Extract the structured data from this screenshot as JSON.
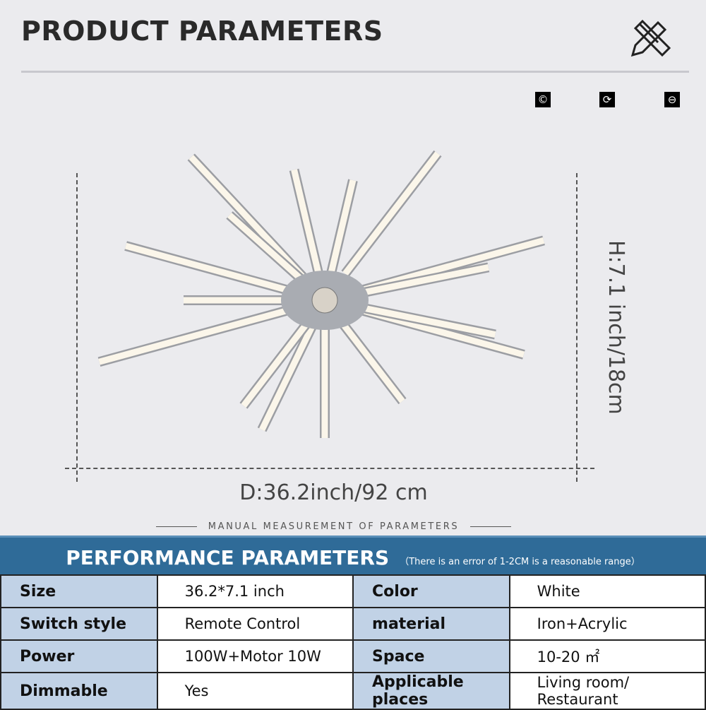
{
  "header": {
    "title": "PRODUCT PARAMETERS",
    "tools_icon": "ruler-pencil-icon"
  },
  "badges": [
    {
      "icon": "copyright-icon",
      "glyph": "©"
    },
    {
      "icon": "refresh-icon",
      "glyph": "⟳"
    },
    {
      "icon": "minus-circle-icon",
      "glyph": "⊖"
    }
  ],
  "dimensions": {
    "diameter": "D:36.2inch/92 cm",
    "height": "H:7.1 inch/18cm",
    "note": "MANUAL MEASUREMENT OF PARAMETERS"
  },
  "performance": {
    "title": "PERFORMANCE PARAMETERS",
    "note": "（There is an error of 1-2CM is a reasonable range）",
    "rows": [
      {
        "k1": "Size",
        "v1": "36.2*7.1 inch",
        "k2": "Color",
        "v2": "White"
      },
      {
        "k1": "Switch style",
        "v1": "Remote Control",
        "k2": "material",
        "v2": "Iron+Acrylic"
      },
      {
        "k1": "Power",
        "v1": "100W+Motor 10W",
        "k2": "Space",
        "v2": "10-20 ㎡"
      },
      {
        "k1": "Dimmable",
        "v1": "Yes",
        "k2": "Applicable places",
        "v2": "Living room/ Restaurant"
      }
    ]
  },
  "colors": {
    "header_bar": "#2f6b98",
    "label_cell": "#c1d2e6",
    "background": "#ebebee"
  }
}
